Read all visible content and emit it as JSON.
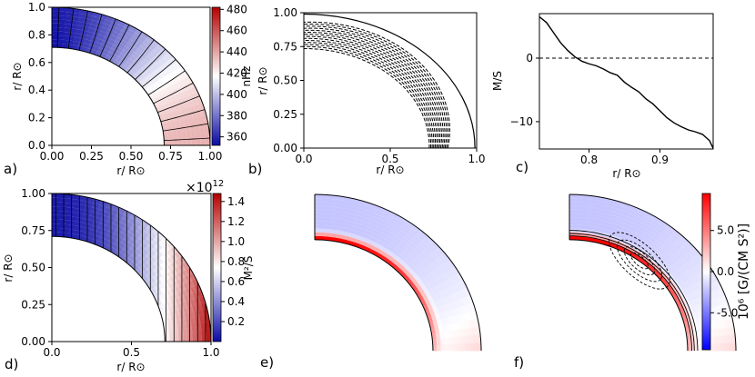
{
  "chart_data": [
    {
      "panel": "a)",
      "type": "heatmap",
      "xlabel": "r/ R⊙",
      "ylabel": "r/ R⊙",
      "xticks": [
        "0.00",
        "0.25",
        "0.50",
        "0.75",
        "1.00"
      ],
      "yticks": [
        "0.0",
        "0.2",
        "0.4",
        "0.6",
        "0.8",
        "1.0"
      ],
      "xlim": [
        0,
        1
      ],
      "ylim": [
        0,
        1
      ],
      "r_range": [
        0.71,
        1.0
      ],
      "colorbar": {
        "label": "nHz",
        "ticks": [
          "360",
          "380",
          "400",
          "420",
          "440",
          "460",
          "480"
        ],
        "range": [
          352,
          482
        ],
        "colors": [
          "#0a0aa6",
          "#ffffff",
          "#b40000"
        ]
      },
      "field": {
        "lat0": 436,
        "lat90": 355,
        "contours": 16
      }
    },
    {
      "panel": "b)",
      "type": "line",
      "xlabel": "r/ R⊙",
      "ylabel": "r/ R⊙",
      "xticks": [
        "0.0",
        "0.5",
        "1.0"
      ],
      "yticks": [
        "0.00",
        "0.25",
        "0.50",
        "0.75",
        "1.00"
      ],
      "xlim": [
        0,
        1
      ],
      "ylim": [
        0,
        1
      ],
      "series": [
        {
          "style": "solid",
          "r": 0.99
        },
        {
          "style": "dashed",
          "cells": [
            0.735,
            0.75,
            0.765,
            0.78,
            0.795,
            0.81,
            0.825,
            0.84,
            0.855,
            0.87,
            0.885,
            0.9,
            0.915,
            0.93
          ]
        }
      ]
    },
    {
      "panel": "c)",
      "type": "line",
      "xlabel": "r/ R⊙",
      "ylabel": "M/S",
      "xticks": [
        "0.8",
        "0.9"
      ],
      "yticks": [
        "−10",
        "0"
      ],
      "xlim": [
        0.73,
        0.975
      ],
      "ylim": [
        -14.3,
        7
      ],
      "series": [
        {
          "style": "solid",
          "x": [
            0.73,
            0.74,
            0.75,
            0.76,
            0.77,
            0.78,
            0.79,
            0.8,
            0.81,
            0.82,
            0.83,
            0.84,
            0.85,
            0.86,
            0.87,
            0.88,
            0.89,
            0.9,
            0.91,
            0.92,
            0.93,
            0.94,
            0.95,
            0.96,
            0.97,
            0.975
          ],
          "y": [
            6.5,
            5.6,
            4.0,
            2.4,
            1.2,
            0.2,
            -0.5,
            -0.9,
            -1.2,
            -1.7,
            -2.3,
            -2.7,
            -3.8,
            -4.6,
            -5.3,
            -6.4,
            -7.2,
            -8.3,
            -9.4,
            -10.2,
            -10.8,
            -11.3,
            -11.6,
            -12.0,
            -13.0,
            -14.2
          ]
        },
        {
          "style": "dashed",
          "x": [
            0.73,
            0.975
          ],
          "y": [
            0,
            0
          ]
        }
      ]
    },
    {
      "panel": "d)",
      "type": "heatmap",
      "xlabel": "r/ R⊙",
      "ylabel": "r/ R⊙",
      "xticks": [
        "0.0",
        "0.5",
        "1.0"
      ],
      "yticks": [
        "0.00",
        "0.25",
        "0.50",
        "0.75",
        "1.00"
      ],
      "xlim": [
        0,
        1
      ],
      "ylim": [
        0,
        1
      ],
      "r_range": [
        0.71,
        1.0
      ],
      "colorbar": {
        "label": "M²/S",
        "offset": "×10",
        "offset_exp": "12",
        "ticks": [
          "0.2",
          "0.4",
          "0.6",
          "0.8",
          "1.0",
          "1.2",
          "1.4"
        ],
        "range": [
          0.0,
          1.48
        ],
        "colors": [
          "#0a0aa6",
          "#ffffff",
          "#b40000"
        ]
      },
      "field": {
        "lat0": 1.45,
        "lat90": 0.05,
        "contours": 20
      }
    },
    {
      "panel": "e)",
      "type": "heatmap",
      "r_range": [
        0.71,
        1.0
      ],
      "shares_colorbar_with": "f)"
    },
    {
      "panel": "f)",
      "type": "heatmap",
      "r_range": [
        0.71,
        1.0
      ],
      "colorbar": {
        "label": "10⁶ [G/(CM S²)]",
        "ticks": [
          "5.0",
          "0.0",
          "-5.0"
        ],
        "range": [
          -9.5,
          9.5
        ],
        "colors": [
          "#0000ff",
          "#ffffff",
          "#ff0000"
        ]
      },
      "overlay": "streamlines"
    }
  ]
}
